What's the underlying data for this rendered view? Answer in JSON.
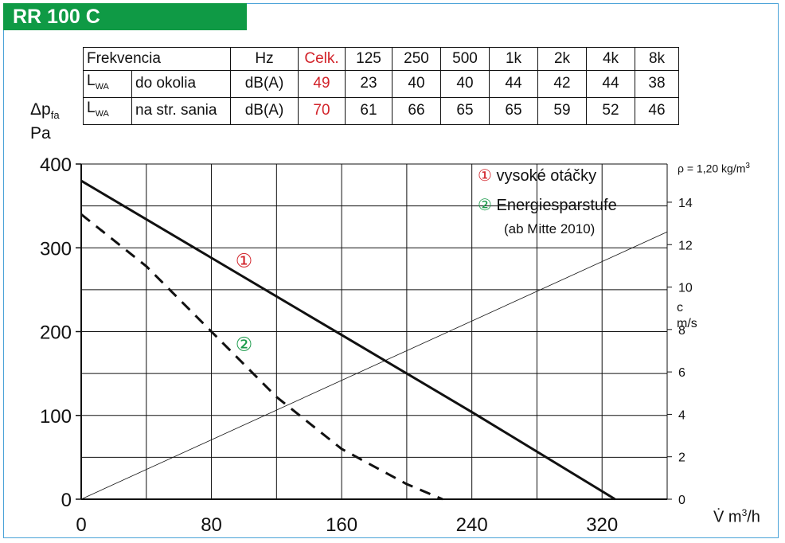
{
  "header": {
    "title": "RR 100 C"
  },
  "sound_table": {
    "headers": [
      "Frekvencia",
      "Hz",
      "Celk.",
      "125",
      "250",
      "500",
      "1k",
      "2k",
      "4k",
      "8k"
    ],
    "rows": [
      {
        "label_main": "L",
        "label_sub": "WA",
        "desc": "do okolia",
        "unit": "dB(A)",
        "total": "49",
        "values": [
          "23",
          "40",
          "40",
          "44",
          "42",
          "44",
          "38"
        ]
      },
      {
        "label_main": "L",
        "label_sub": "WA",
        "desc": "na str. sania",
        "unit": "dB(A)",
        "total": "70",
        "values": [
          "61",
          "66",
          "65",
          "65",
          "59",
          "52",
          "46"
        ]
      }
    ]
  },
  "axes": {
    "y_label_main": "Δp",
    "y_label_sub": "fa",
    "y_unit": "Pa",
    "x_label": "V̇ m",
    "x_label_sup": "3",
    "x_label_tail": "/h",
    "right_label": "c",
    "right_unit": "m/s",
    "density": "ρ = 1,20 kg/m",
    "density_sup": "3"
  },
  "legend": {
    "item1_marker": "①",
    "item1_text": "vysoké otáčky",
    "item2_marker": "②",
    "item2_text": "Energiesparstufe",
    "item2_note": "(ab Mitte 2010)"
  },
  "colors": {
    "accent_green": "#0f9a45",
    "frame_blue": "#4aa3d8",
    "red": "#d2232a",
    "green": "#1a9a4a"
  },
  "chart_data": {
    "type": "line",
    "xlim": [
      0,
      360
    ],
    "ylim": [
      0,
      400
    ],
    "x_ticks": [
      0,
      80,
      160,
      240,
      320
    ],
    "y_ticks": [
      0,
      100,
      200,
      300,
      400
    ],
    "right_axis": {
      "ylim": [
        0,
        15.8
      ],
      "ticks": [
        0,
        2,
        4,
        6,
        8,
        10,
        12,
        14
      ]
    },
    "grid": true,
    "series": [
      {
        "marker": "①",
        "style": "solid",
        "color": "#d2232a",
        "x": [
          0,
          80,
          160,
          240,
          328
        ],
        "y": [
          380,
          288,
          196,
          104,
          0
        ]
      },
      {
        "marker": "②",
        "style": "dashed",
        "color": "#1a9a4a",
        "x": [
          0,
          40,
          80,
          120,
          160,
          200,
          222
        ],
        "y": [
          340,
          278,
          200,
          122,
          60,
          18,
          0
        ]
      },
      {
        "axis": "right",
        "style": "thin",
        "x": [
          0,
          360
        ],
        "y": [
          0,
          12.6
        ]
      }
    ],
    "series_labels": [
      {
        "text": "①",
        "x": 100,
        "y": 277,
        "color": "#d2232a"
      },
      {
        "text": "②",
        "x": 100,
        "y": 177,
        "color": "#1a9a4a"
      }
    ]
  }
}
